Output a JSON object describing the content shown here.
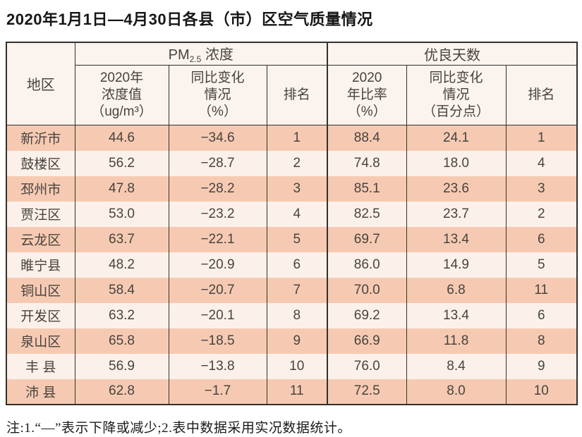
{
  "title": "2020年1月1日—4月30日各县（市）区空气质量情况",
  "table": {
    "corner_header": "地区",
    "group_pm25": {
      "pm": "PM",
      "pm_sub": "2.5",
      "suffix": " 浓度"
    },
    "group_good_days": "优良天数",
    "subheaders": {
      "pm_value": "2020年\n浓度值\n（ug/m³）",
      "pm_change": "同比变化\n情况\n（%）",
      "pm_rank": "排名",
      "good_rate": "2020\n年比率\n（%）",
      "good_change": "同比变化\n情况\n（百分点）",
      "good_rank": "排名"
    },
    "rows": [
      {
        "region": "新沂市",
        "pm_value": "44.6",
        "pm_change": "−34.6",
        "pm_rank": "1",
        "good_rate": "88.4",
        "good_change": "24.1",
        "good_rank": "1"
      },
      {
        "region": "鼓楼区",
        "pm_value": "56.2",
        "pm_change": "−28.7",
        "pm_rank": "2",
        "good_rate": "74.8",
        "good_change": "18.0",
        "good_rank": "4"
      },
      {
        "region": "邳州市",
        "pm_value": "47.8",
        "pm_change": "−28.2",
        "pm_rank": "3",
        "good_rate": "85.1",
        "good_change": "23.6",
        "good_rank": "3"
      },
      {
        "region": "贾汪区",
        "pm_value": "53.0",
        "pm_change": "−23.2",
        "pm_rank": "4",
        "good_rate": "82.5",
        "good_change": "23.7",
        "good_rank": "2"
      },
      {
        "region": "云龙区",
        "pm_value": "63.7",
        "pm_change": "−22.1",
        "pm_rank": "5",
        "good_rate": "69.7",
        "good_change": "13.4",
        "good_rank": "6"
      },
      {
        "region": "睢宁县",
        "pm_value": "48.2",
        "pm_change": "−20.9",
        "pm_rank": "6",
        "good_rate": "86.0",
        "good_change": "14.9",
        "good_rank": "5"
      },
      {
        "region": "铜山区",
        "pm_value": "58.4",
        "pm_change": "−20.7",
        "pm_rank": "7",
        "good_rate": "70.0",
        "good_change": "6.8",
        "good_rank": "11"
      },
      {
        "region": "开发区",
        "pm_value": "63.2",
        "pm_change": "−20.1",
        "pm_rank": "8",
        "good_rate": "69.2",
        "good_change": "13.4",
        "good_rank": "6"
      },
      {
        "region": "泉山区",
        "pm_value": "65.8",
        "pm_change": "−18.5",
        "pm_rank": "9",
        "good_rate": "66.9",
        "good_change": "11.8",
        "good_rank": "8"
      },
      {
        "region": "丰 县",
        "pm_value": "56.9",
        "pm_change": "−13.8",
        "pm_rank": "10",
        "good_rate": "76.0",
        "good_change": "8.4",
        "good_rank": "9"
      },
      {
        "region": "沛 县",
        "pm_value": "62.8",
        "pm_change": "−1.7",
        "pm_rank": "11",
        "good_rate": "72.5",
        "good_change": "8.0",
        "good_rank": "10"
      }
    ]
  },
  "note": "注:1.“—”表示下降或减少;2.表中数据采用实况数据统计。",
  "colors": {
    "row_odd_bg": "#f6cab2",
    "row_even_bg": "#fcf1ea",
    "header_bg": "#faf3ee",
    "border": "#34302c",
    "text": "#47433f"
  }
}
